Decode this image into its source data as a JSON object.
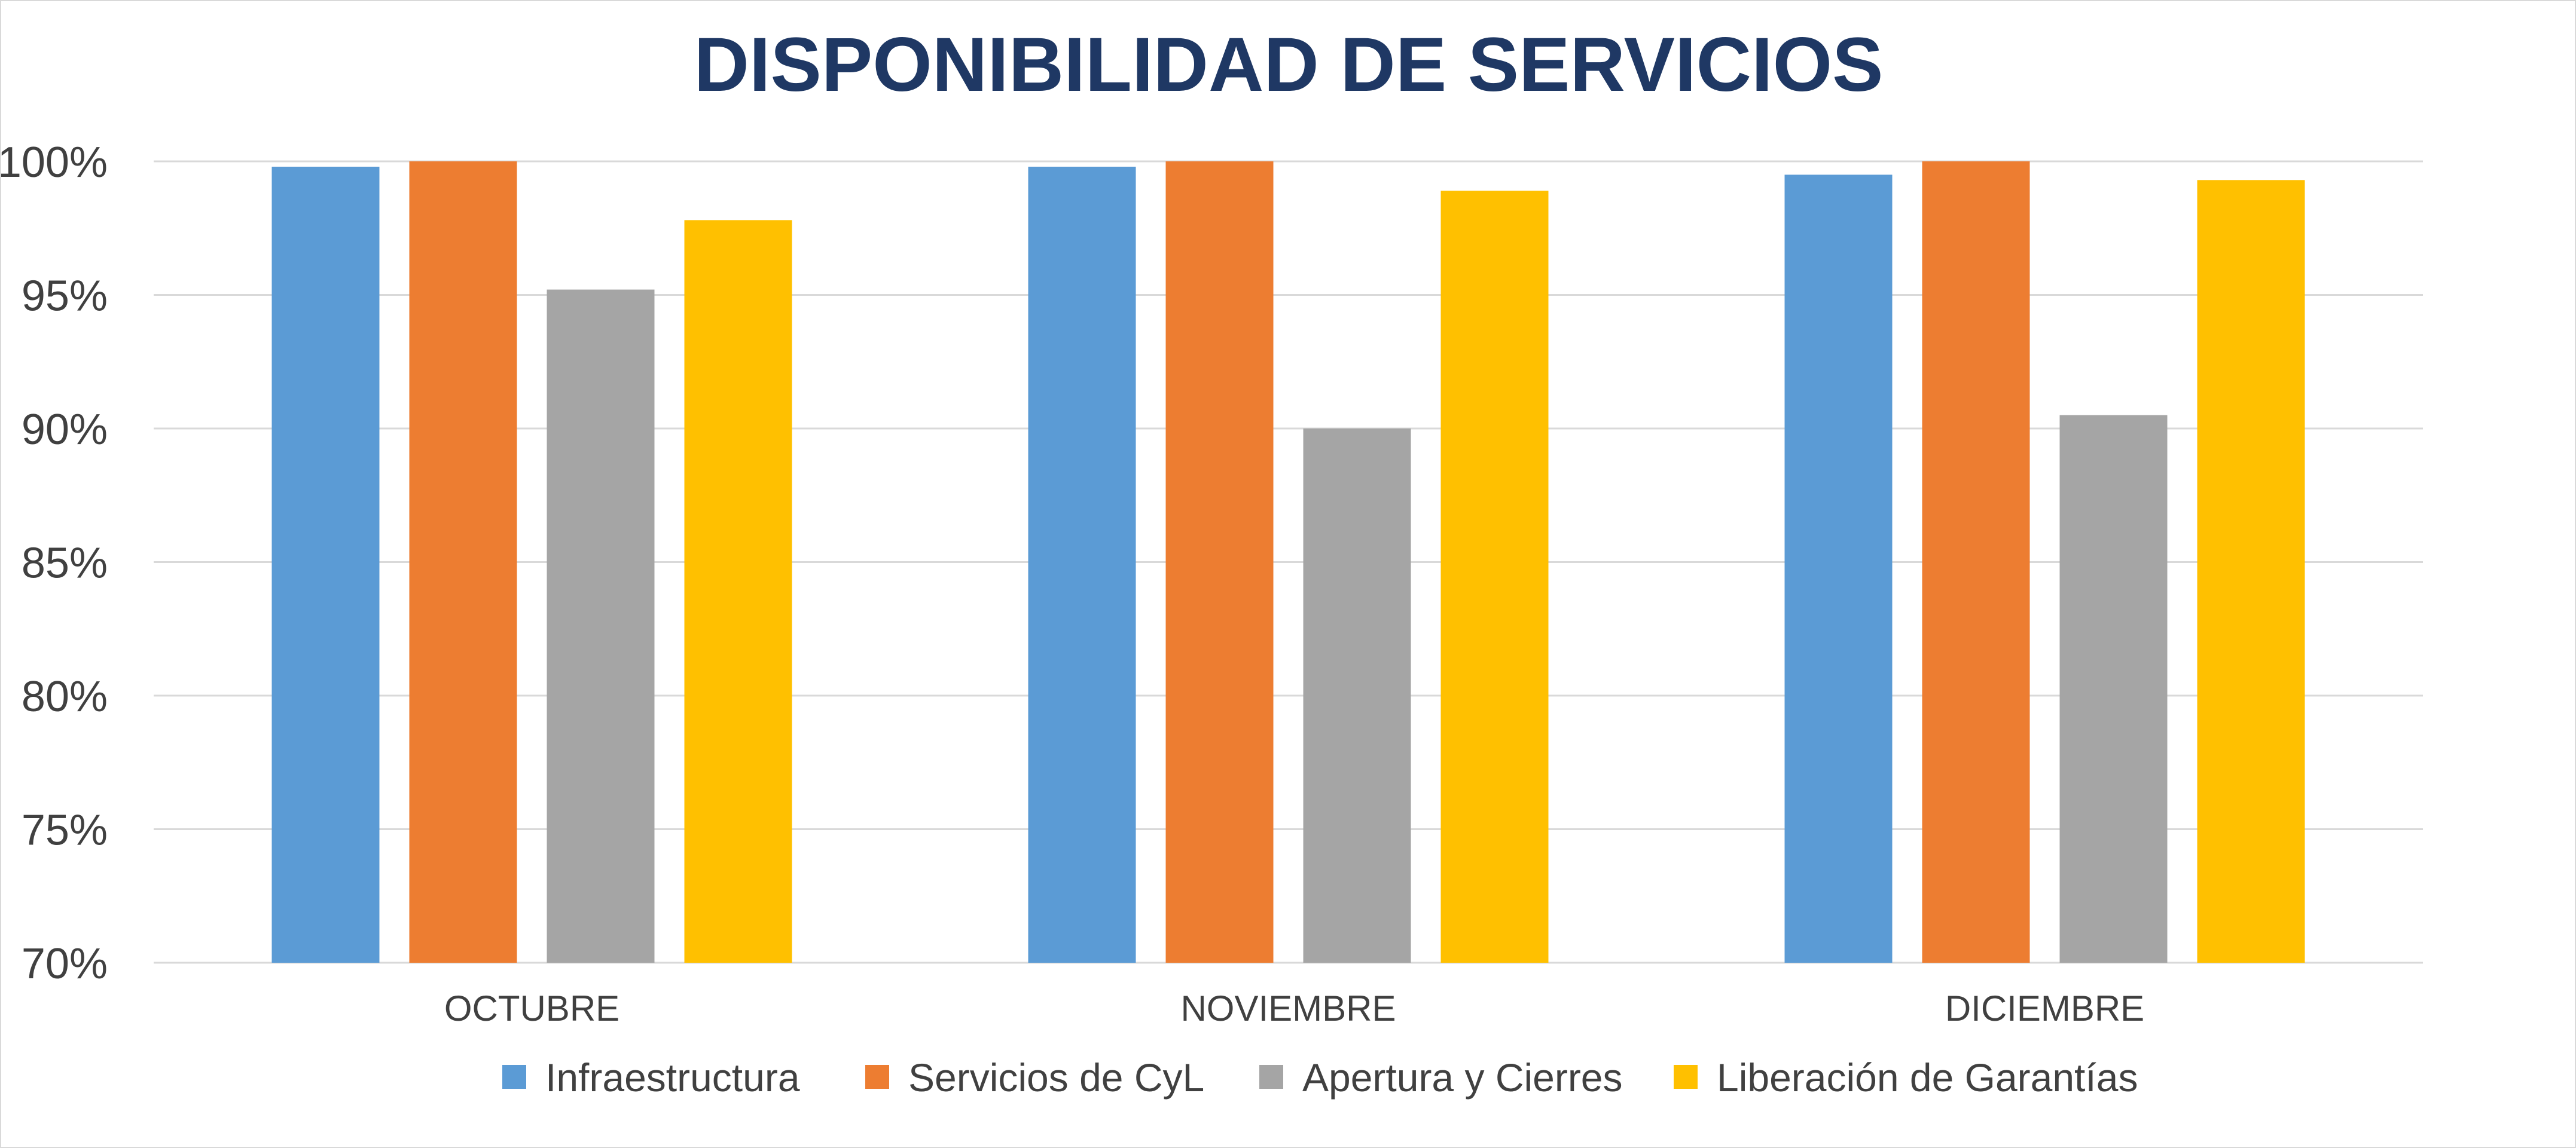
{
  "chart_data": {
    "type": "bar",
    "title": "DISPONIBILIDAD DE SERVICIOS",
    "xlabel": "",
    "ylabel": "",
    "categories": [
      "OCTUBRE",
      "NOVIEMBRE",
      "DICIEMBRE"
    ],
    "series": [
      {
        "name": "Infraestructura",
        "color": "#5b9bd5",
        "values": [
          99.8,
          99.8,
          99.5
        ]
      },
      {
        "name": "Servicios de CyL",
        "color": "#ed7d31",
        "values": [
          100.0,
          100.0,
          100.0
        ]
      },
      {
        "name": "Apertura y Cierres",
        "color": "#a5a5a5",
        "values": [
          95.2,
          90.0,
          90.5
        ]
      },
      {
        "name": "Liberación de Garantías",
        "color": "#ffc000",
        "values": [
          97.8,
          98.9,
          99.3
        ]
      }
    ],
    "ylim": [
      70,
      100
    ],
    "yticks": [
      "70%",
      "75%",
      "80%",
      "85%",
      "90%",
      "95%",
      "100%"
    ],
    "grid": true,
    "legend_position": "bottom",
    "title_color": "#1f3864",
    "axis_text_color": "#404040",
    "gridline_color": "#d9d9d9"
  }
}
